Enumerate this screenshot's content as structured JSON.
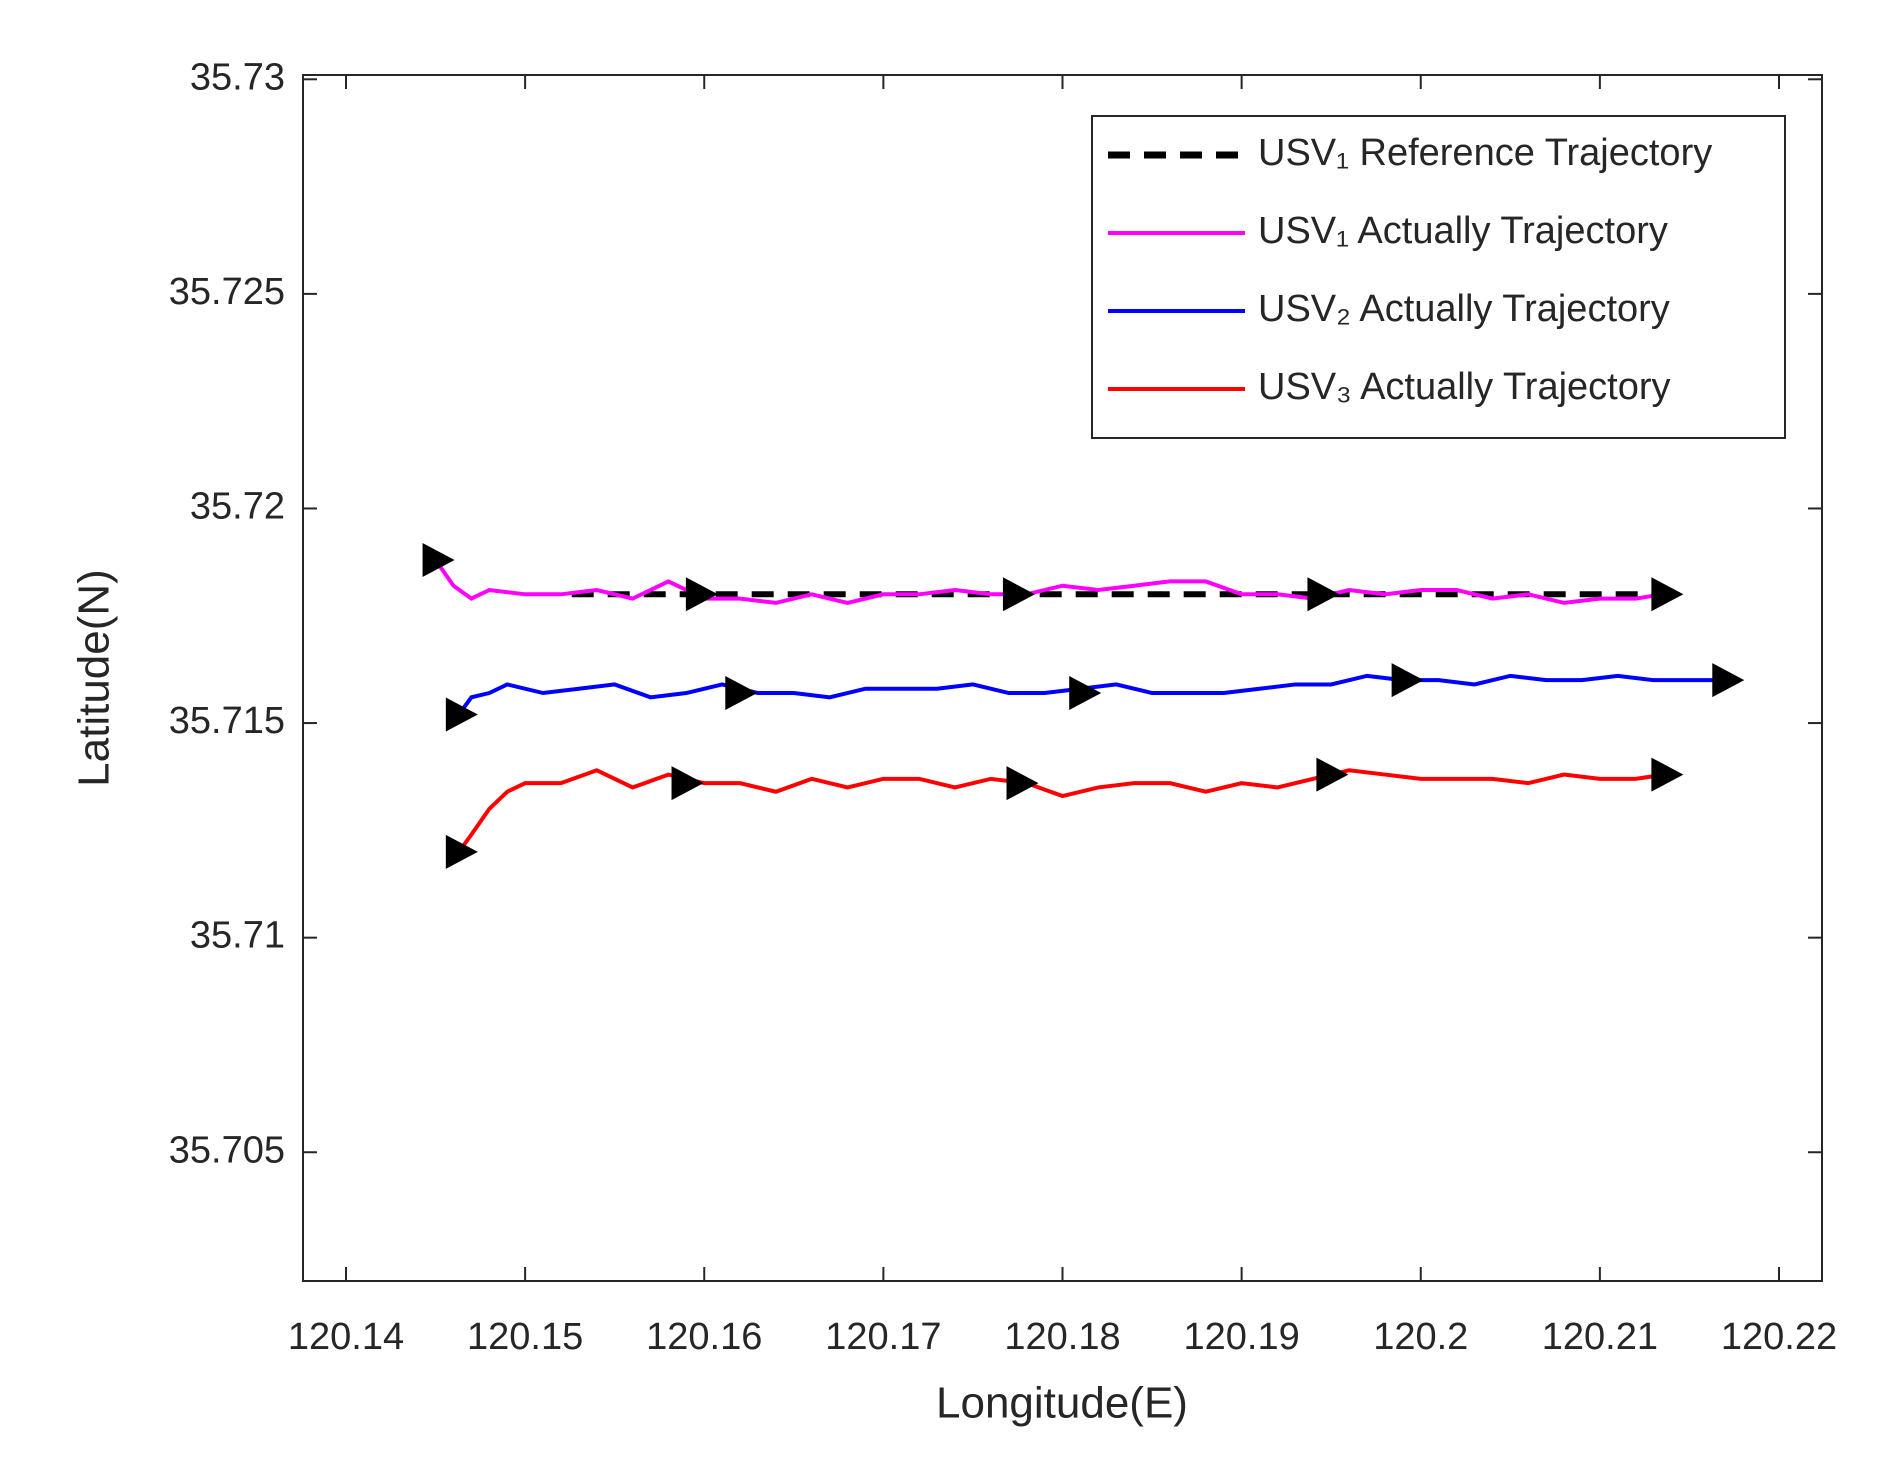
{
  "chart_data": {
    "type": "line",
    "xlabel": "Longitude(E)",
    "ylabel": "Latitude(N)",
    "xlim": [
      120.1376,
      120.2224
    ],
    "ylim": [
      35.702,
      35.7301
    ],
    "xticks": [
      120.14,
      120.15,
      120.16,
      120.17,
      120.18,
      120.19,
      120.2,
      120.21,
      120.22
    ],
    "yticks": [
      35.705,
      35.71,
      35.715,
      35.72,
      35.725,
      35.73
    ],
    "grid": false,
    "legend": "northeast",
    "series": [
      {
        "name": "USV₁ Reference Trajectory",
        "color": "#000000",
        "dash": true,
        "x": [
          120.1526,
          120.2137
        ],
        "values": [
          35.718,
          35.718
        ]
      },
      {
        "name": "USV₁ Actually Trajectory",
        "color": "#ff00ff",
        "dash": false,
        "x": [
          120.145,
          120.146,
          120.147,
          120.148,
          120.15,
          120.152,
          120.154,
          120.156,
          120.158,
          120.16,
          120.162,
          120.164,
          120.166,
          120.168,
          120.17,
          120.172,
          120.174,
          120.176,
          120.178,
          120.18,
          120.182,
          120.184,
          120.186,
          120.188,
          120.19,
          120.192,
          120.194,
          120.196,
          120.198,
          120.2,
          120.202,
          120.204,
          120.206,
          120.208,
          120.21,
          120.212,
          120.2135
        ],
        "values": [
          35.7188,
          35.7182,
          35.7179,
          35.7181,
          35.718,
          35.718,
          35.7181,
          35.7179,
          35.7183,
          35.7179,
          35.7179,
          35.7178,
          35.718,
          35.7178,
          35.718,
          35.718,
          35.7181,
          35.718,
          35.718,
          35.7182,
          35.7181,
          35.7182,
          35.7183,
          35.7183,
          35.718,
          35.718,
          35.7179,
          35.7181,
          35.718,
          35.7181,
          35.7181,
          35.7179,
          35.718,
          35.7178,
          35.7179,
          35.7179,
          35.718
        ],
        "marker_x": [
          120.145,
          120.1597,
          120.1774,
          120.1944,
          120.2136
        ],
        "marker_values": [
          35.7188,
          35.718,
          35.718,
          35.718,
          35.718
        ]
      },
      {
        "name": "USV₂ Actually Trajectory",
        "color": "#0000ff",
        "dash": false,
        "x": [
          120.1463,
          120.147,
          120.148,
          120.149,
          120.151,
          120.153,
          120.155,
          120.157,
          120.159,
          120.161,
          120.163,
          120.165,
          120.167,
          120.169,
          120.171,
          120.173,
          120.175,
          120.177,
          120.179,
          120.181,
          120.183,
          120.185,
          120.187,
          120.189,
          120.191,
          120.193,
          120.195,
          120.197,
          120.199,
          120.201,
          120.203,
          120.205,
          120.207,
          120.209,
          120.211,
          120.213,
          120.215,
          120.217
        ],
        "values": [
          35.7152,
          35.7156,
          35.7157,
          35.7159,
          35.7157,
          35.7158,
          35.7159,
          35.7156,
          35.7157,
          35.7159,
          35.7157,
          35.7157,
          35.7156,
          35.7158,
          35.7158,
          35.7158,
          35.7159,
          35.7157,
          35.7157,
          35.7158,
          35.7159,
          35.7157,
          35.7157,
          35.7157,
          35.7158,
          35.7159,
          35.7159,
          35.7161,
          35.716,
          35.716,
          35.7159,
          35.7161,
          35.716,
          35.716,
          35.7161,
          35.716,
          35.716,
          35.716
        ],
        "marker_x": [
          120.1463,
          120.1619,
          120.1811,
          120.1991,
          120.217
        ],
        "marker_values": [
          35.7152,
          35.7157,
          35.7157,
          35.716,
          35.716
        ]
      },
      {
        "name": "USV₃ Actually Trajectory",
        "color": "#ff0000",
        "dash": false,
        "x": [
          120.1463,
          120.147,
          120.148,
          120.149,
          120.15,
          120.152,
          120.154,
          120.156,
          120.158,
          120.16,
          120.162,
          120.164,
          120.166,
          120.168,
          120.17,
          120.172,
          120.174,
          120.176,
          120.178,
          120.18,
          120.182,
          120.184,
          120.186,
          120.188,
          120.19,
          120.192,
          120.194,
          120.196,
          120.198,
          120.2,
          120.202,
          120.204,
          120.206,
          120.208,
          120.21,
          120.212,
          120.2136
        ],
        "values": [
          35.712,
          35.7124,
          35.713,
          35.7134,
          35.7136,
          35.7136,
          35.7139,
          35.7135,
          35.7138,
          35.7136,
          35.7136,
          35.7134,
          35.7137,
          35.7135,
          35.7137,
          35.7137,
          35.7135,
          35.7137,
          35.7136,
          35.7133,
          35.7135,
          35.7136,
          35.7136,
          35.7134,
          35.7136,
          35.7135,
          35.7137,
          35.7139,
          35.7138,
          35.7137,
          35.7137,
          35.7137,
          35.7136,
          35.7138,
          35.7137,
          35.7137,
          35.7138
        ],
        "marker_x": [
          120.1463,
          120.1589,
          120.1776,
          120.1949,
          120.2136
        ],
        "marker_values": [
          35.712,
          35.7136,
          35.7136,
          35.7138,
          35.7138
        ]
      }
    ]
  }
}
